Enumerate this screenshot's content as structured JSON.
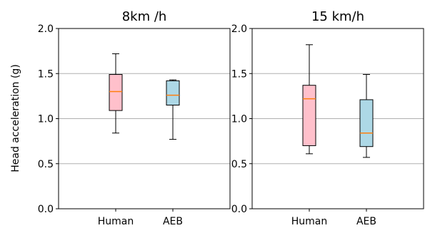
{
  "chart_data": [
    {
      "type": "box",
      "title": "8km /h",
      "ylabel": "Head acceleration (g)",
      "xlabel": "",
      "categories": [
        "Human",
        "AEB"
      ],
      "ylim": [
        0.0,
        2.0
      ],
      "yticks": [
        "0.0",
        "0.5",
        "1.0",
        "1.5",
        "2.0"
      ],
      "grid": "horizontal",
      "boxes": [
        {
          "category": "Human",
          "whisker_low": 0.84,
          "q1": 1.09,
          "median": 1.3,
          "q3": 1.49,
          "whisker_high": 1.72,
          "color": "#ffc0cb"
        },
        {
          "category": "AEB",
          "whisker_low": 0.77,
          "q1": 1.15,
          "median": 1.26,
          "q3": 1.42,
          "whisker_high": 1.43,
          "color": "#add8e6"
        }
      ]
    },
    {
      "type": "box",
      "title": "15 km/h",
      "ylabel": "",
      "xlabel": "",
      "categories": [
        "Human",
        "AEB"
      ],
      "ylim": [
        0.0,
        2.0
      ],
      "yticks": [
        "0.0",
        "0.5",
        "1.0",
        "1.5",
        "2.0"
      ],
      "grid": "horizontal",
      "boxes": [
        {
          "category": "Human",
          "whisker_low": 0.61,
          "q1": 0.7,
          "median": 1.22,
          "q3": 1.37,
          "whisker_high": 1.82,
          "color": "#ffc0cb"
        },
        {
          "category": "AEB",
          "whisker_low": 0.57,
          "q1": 0.69,
          "median": 0.84,
          "q3": 1.21,
          "whisker_high": 1.49,
          "color": "#add8e6"
        }
      ]
    }
  ],
  "colors": {
    "median": "#ff7f0e",
    "grid": "#b0b0b0",
    "human_box": "#ffc0cb",
    "aeb_box": "#add8e6"
  }
}
